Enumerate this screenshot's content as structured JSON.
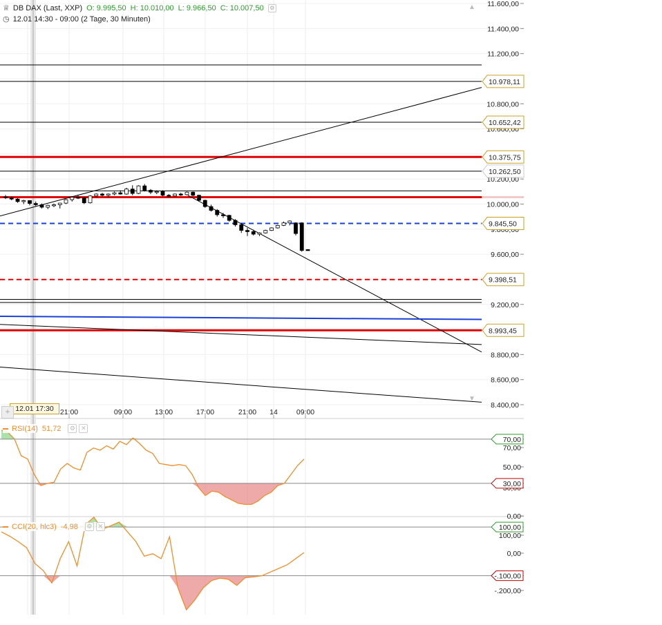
{
  "header": {
    "symbol": "DB DAX (Last, XXP)",
    "open": "O: 9.995,50",
    "high": "H: 10.010,00",
    "low": "L: 9.966,50",
    "close": "C: 10.007,50",
    "range": "12.01 14:30 - 09:00 (2 Tage, 30 Minuten)",
    "chart_icon": "candlestick-icon",
    "clock_icon": "clock-icon"
  },
  "crosshair_time": "12.01 17:30",
  "colors": {
    "up_candle": "#ffffff",
    "down_candle": "#000000",
    "support_red": "#e00000",
    "dashed_blue": "#1a3fd6",
    "solid_blue": "#1a3fd6",
    "indicator": "#f28c28",
    "overbought_fill": "#8fd88f",
    "oversold_fill": "#e88c8c",
    "tag_green": "#2a9d2a",
    "tag_red": "#c00000",
    "tag_gold": "#c9a227"
  },
  "chart_data": [
    {
      "type": "candlestick",
      "title": "DB DAX (Last, XXP)",
      "x_ticks": [
        "21:00",
        "09:00",
        "13:00",
        "17:00",
        "21:00",
        "14",
        "09:00"
      ],
      "ylim": [
        8350,
        11620
      ],
      "y_ticks": [
        "11.600,00",
        "11.400,00",
        "11.200,00",
        "11.000,00",
        "10.800,00",
        "10.600,00",
        "10.400,00",
        "10.200,00",
        "10.000,00",
        "9.800,00",
        "9.600,00",
        "9.400,00",
        "9.200,00",
        "9.000,00",
        "8.800,00",
        "8.600,00",
        "8.400,00"
      ],
      "y_tick_values": [
        11600,
        11400,
        11200,
        11000,
        10800,
        10600,
        10400,
        10200,
        10000,
        9800,
        9600,
        9400,
        9200,
        9000,
        8800,
        8600,
        8400
      ],
      "price_tags": [
        {
          "label": "10.978,11",
          "value": 10978.11,
          "style": "gold"
        },
        {
          "label": "10.652,42",
          "value": 10652.42,
          "style": "gold"
        },
        {
          "label": "10.375,75",
          "value": 10375.75,
          "style": "gold"
        },
        {
          "label": "10.262,50",
          "value": 10262.5,
          "style": "plain"
        },
        {
          "label": "9.845,50",
          "value": 9845.5,
          "style": "gold"
        },
        {
          "label": "9.398,51",
          "value": 9398.51,
          "style": "gold"
        },
        {
          "label": "8.993,45",
          "value": 8993.45,
          "style": "gold"
        }
      ],
      "horizontal_lines": [
        {
          "value": 11110,
          "style": "solid",
          "color": "#000000",
          "weight": 1
        },
        {
          "value": 10978.11,
          "style": "solid",
          "color": "#000000",
          "weight": 1
        },
        {
          "value": 10652.42,
          "style": "solid",
          "color": "#000000",
          "weight": 1
        },
        {
          "value": 10375.75,
          "style": "solid",
          "color": "#e00000",
          "weight": 3
        },
        {
          "value": 10262.5,
          "style": "solid",
          "color": "#000000",
          "weight": 1
        },
        {
          "value": 10105,
          "style": "solid",
          "color": "#000000",
          "weight": 1
        },
        {
          "value": 10055,
          "style": "solid",
          "color": "#e00000",
          "weight": 3
        },
        {
          "value": 9845.5,
          "style": "dashed",
          "color": "#1a3fd6",
          "weight": 2
        },
        {
          "value": 9398.51,
          "style": "dashed",
          "color": "#e00000",
          "weight": 2
        },
        {
          "value": 9240,
          "style": "solid",
          "color": "#000000",
          "weight": 1
        },
        {
          "value": 9215,
          "style": "solid",
          "color": "#000000",
          "weight": 1
        },
        {
          "value": 8993.45,
          "style": "solid",
          "color": "#e00000",
          "weight": 3
        }
      ],
      "trend_lines": [
        {
          "from": {
            "t": 0,
            "v": 9905
          },
          "to": {
            "t": 1,
            "v": 10930
          },
          "color": "#000000"
        },
        {
          "from": {
            "t": 0.39,
            "v": 10070
          },
          "to": {
            "t": 1,
            "v": 8820
          },
          "color": "#000000"
        },
        {
          "from": {
            "t": 0,
            "v": 9105
          },
          "to": {
            "t": 1,
            "v": 9080
          },
          "color": "#1a3fd6"
        },
        {
          "from": {
            "t": 0,
            "v": 9040
          },
          "to": {
            "t": 1,
            "v": 8880
          },
          "color": "#000000"
        },
        {
          "from": {
            "t": 0,
            "v": 8700
          },
          "to": {
            "t": 1,
            "v": 8420
          },
          "color": "#000000"
        }
      ],
      "candles": [
        {
          "o": 10058,
          "h": 10072,
          "l": 10040,
          "c": 10050
        },
        {
          "o": 10050,
          "h": 10060,
          "l": 10030,
          "c": 10040
        },
        {
          "o": 10040,
          "h": 10052,
          "l": 10010,
          "c": 10020
        },
        {
          "o": 10020,
          "h": 10035,
          "l": 10000,
          "c": 10028
        },
        {
          "o": 10028,
          "h": 10032,
          "l": 9990,
          "c": 10005
        },
        {
          "o": 10005,
          "h": 10020,
          "l": 9985,
          "c": 9995
        },
        {
          "o": 9995,
          "h": 10005,
          "l": 9965,
          "c": 9975
        },
        {
          "o": 9975,
          "h": 9995,
          "l": 9960,
          "c": 9990
        },
        {
          "o": 9990,
          "h": 10005,
          "l": 9975,
          "c": 9995
        },
        {
          "o": 9995,
          "h": 10010,
          "l": 9965,
          "c": 10007.5
        },
        {
          "o": 10007.5,
          "h": 10040,
          "l": 10000,
          "c": 10035
        },
        {
          "o": 10035,
          "h": 10060,
          "l": 10020,
          "c": 10055
        },
        {
          "o": 10055,
          "h": 10070,
          "l": 10040,
          "c": 10050
        },
        {
          "o": 10050,
          "h": 10060,
          "l": 10000,
          "c": 10010
        },
        {
          "o": 10010,
          "h": 10070,
          "l": 10005,
          "c": 10065
        },
        {
          "o": 10065,
          "h": 10085,
          "l": 10050,
          "c": 10080
        },
        {
          "o": 10080,
          "h": 10090,
          "l": 10060,
          "c": 10070
        },
        {
          "o": 10070,
          "h": 10085,
          "l": 10055,
          "c": 10080
        },
        {
          "o": 10080,
          "h": 10100,
          "l": 10070,
          "c": 10090
        },
        {
          "o": 10090,
          "h": 10110,
          "l": 10075,
          "c": 10080
        },
        {
          "o": 10080,
          "h": 10130,
          "l": 10075,
          "c": 10120
        },
        {
          "o": 10120,
          "h": 10150,
          "l": 10070,
          "c": 10085
        },
        {
          "o": 10085,
          "h": 10150,
          "l": 10080,
          "c": 10145
        },
        {
          "o": 10145,
          "h": 10160,
          "l": 10100,
          "c": 10110
        },
        {
          "o": 10110,
          "h": 10120,
          "l": 10080,
          "c": 10095
        },
        {
          "o": 10095,
          "h": 10110,
          "l": 10080,
          "c": 10100
        },
        {
          "o": 10100,
          "h": 10110,
          "l": 10060,
          "c": 10070
        },
        {
          "o": 10070,
          "h": 10080,
          "l": 10055,
          "c": 10065
        },
        {
          "o": 10065,
          "h": 10085,
          "l": 10060,
          "c": 10080
        },
        {
          "o": 10080,
          "h": 10090,
          "l": 10065,
          "c": 10075
        },
        {
          "o": 10075,
          "h": 10100,
          "l": 10070,
          "c": 10095
        },
        {
          "o": 10095,
          "h": 10100,
          "l": 10060,
          "c": 10070
        },
        {
          "o": 10070,
          "h": 10075,
          "l": 10020,
          "c": 10030
        },
        {
          "o": 10030,
          "h": 10035,
          "l": 9970,
          "c": 9980
        },
        {
          "o": 9980,
          "h": 9995,
          "l": 9940,
          "c": 9950
        },
        {
          "o": 9950,
          "h": 9960,
          "l": 9900,
          "c": 9915
        },
        {
          "o": 9915,
          "h": 9930,
          "l": 9890,
          "c": 9910
        },
        {
          "o": 9910,
          "h": 9915,
          "l": 9860,
          "c": 9870
        },
        {
          "o": 9870,
          "h": 9880,
          "l": 9820,
          "c": 9835
        },
        {
          "o": 9835,
          "h": 9845,
          "l": 9770,
          "c": 9790
        },
        {
          "o": 9790,
          "h": 9810,
          "l": 9745,
          "c": 9780
        },
        {
          "o": 9780,
          "h": 9795,
          "l": 9750,
          "c": 9760
        },
        {
          "o": 9760,
          "h": 9775,
          "l": 9745,
          "c": 9770
        },
        {
          "o": 9770,
          "h": 9795,
          "l": 9765,
          "c": 9790
        },
        {
          "o": 9790,
          "h": 9815,
          "l": 9785,
          "c": 9810
        },
        {
          "o": 9810,
          "h": 9835,
          "l": 9805,
          "c": 9830
        },
        {
          "o": 9830,
          "h": 9860,
          "l": 9825,
          "c": 9850
        },
        {
          "o": 9850,
          "h": 9870,
          "l": 9830,
          "c": 9865
        },
        {
          "o": 9850,
          "h": 9855,
          "l": 9750,
          "c": 9765
        },
        {
          "o": 9850,
          "h": 9855,
          "l": 9620,
          "c": 9630
        },
        {
          "o": 9637,
          "h": 9640,
          "l": 9628,
          "c": 9630
        }
      ]
    },
    {
      "type": "line",
      "series": [
        {
          "name": "RSI(14)",
          "last_label": "51,72"
        }
      ],
      "levels": [
        70,
        30
      ],
      "level_labels": [
        "70,00",
        "30,00"
      ],
      "y_ticks": [
        "70,00",
        "50,00",
        "30,00",
        "0,00"
      ],
      "ylim": [
        0,
        88
      ],
      "values": [
        78,
        76,
        70,
        55,
        52,
        38,
        28,
        30,
        31,
        43,
        48,
        44,
        42,
        58,
        62,
        60,
        64,
        61,
        68,
        65,
        71,
        66,
        60,
        57,
        48,
        47,
        46,
        47,
        46,
        38,
        26,
        19,
        23,
        22,
        18,
        15,
        12,
        11,
        11,
        14,
        19,
        22,
        28,
        30,
        38,
        46,
        52
      ]
    },
    {
      "type": "line",
      "series": [
        {
          "name": "CCI(20, hlc3)",
          "last_label": "-4,98"
        }
      ],
      "levels": [
        100,
        -100
      ],
      "level_labels": [
        "100,00",
        "-.100,00"
      ],
      "y_ticks": [
        "100,00",
        "0,00",
        "-.200,00"
      ],
      "ylim": [
        -260,
        140
      ],
      "values": [
        80,
        62,
        40,
        15,
        -50,
        -80,
        -130,
        -30,
        40,
        -60,
        110,
        140,
        90,
        105,
        120,
        80,
        40,
        -20,
        -10,
        -30,
        60,
        -150,
        -240,
        -200,
        -150,
        -120,
        -110,
        -115,
        -140,
        -108,
        -105,
        -100,
        -85,
        -70,
        -55,
        -30,
        -4.98
      ]
    }
  ]
}
